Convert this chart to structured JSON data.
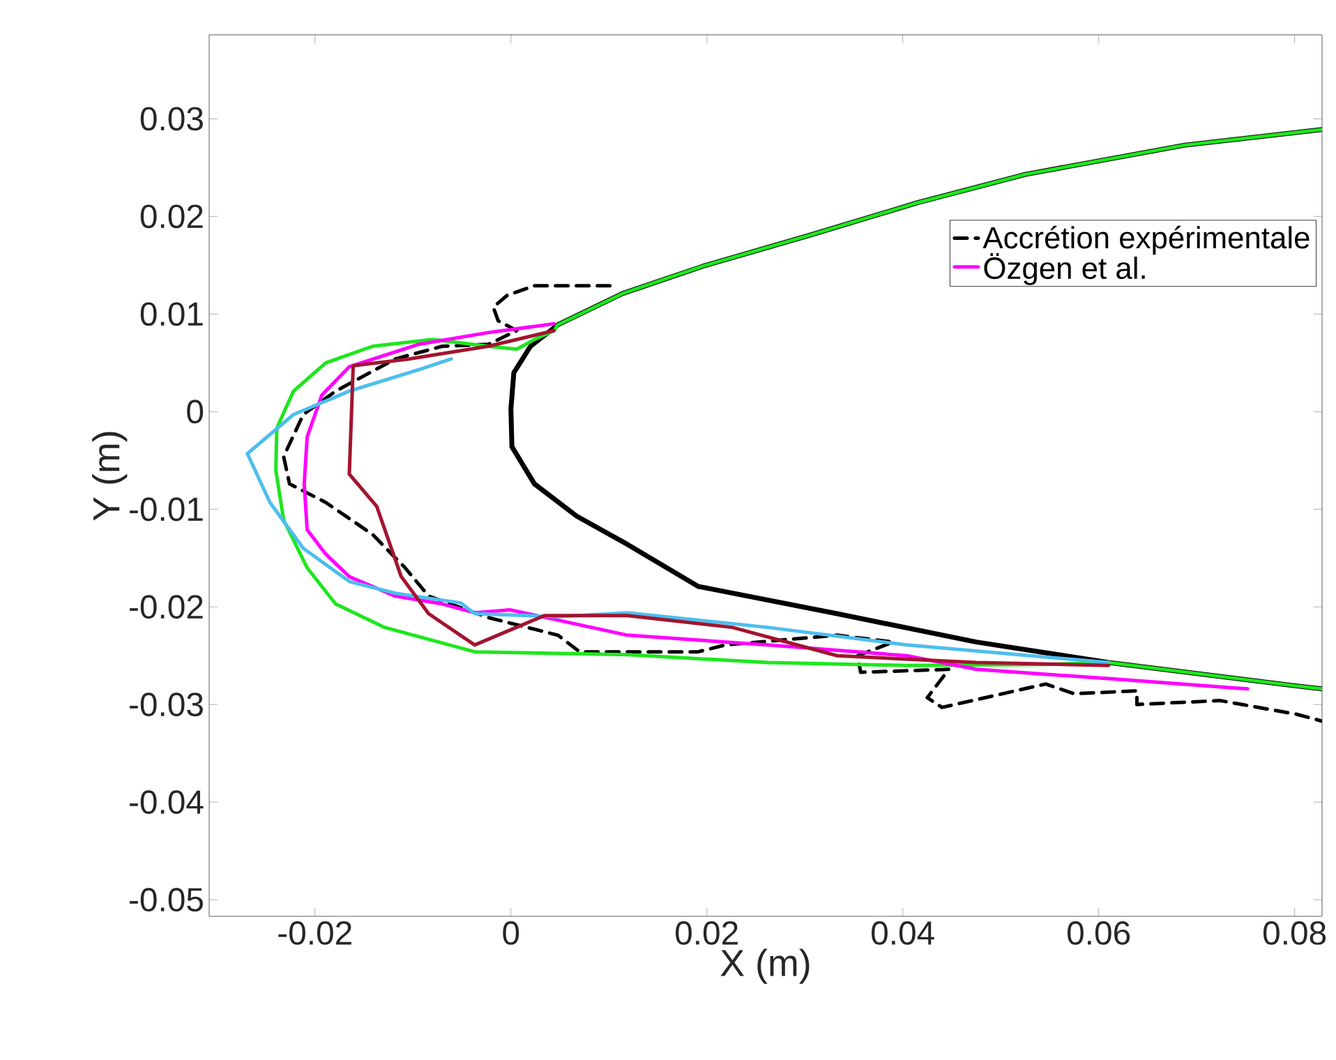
{
  "chart_data": {
    "type": "line",
    "xlabel": "X (m)",
    "ylabel": "Y (m)",
    "xlim": [
      -0.0308,
      0.0828
    ],
    "ylim": [
      -0.0517,
      0.0386
    ],
    "xticks": [
      -0.02,
      0,
      0.02,
      0.04,
      0.06,
      0.08
    ],
    "yticks": [
      -0.05,
      -0.04,
      -0.03,
      -0.02,
      -0.01,
      0,
      0.01,
      0.02,
      0.03
    ],
    "grid": false,
    "legend": "top right",
    "marker": "none",
    "series": [
      {
        "color": "#000000",
        "line_style": "solid",
        "x": [
          0.0828,
          0.0688,
          0.0525,
          0.0415,
          0.0306,
          0.0196,
          0.0114,
          0.0048,
          0.002,
          0.0003,
          0.0,
          0.0001,
          0.0024,
          0.0067,
          0.0119,
          0.0191,
          0.0333,
          0.0475,
          0.061,
          0.0802,
          0.0828
        ],
        "values": [
          0.0289,
          0.0273,
          0.0243,
          0.0214,
          0.0181,
          0.0149,
          0.0121,
          0.0089,
          0.0067,
          0.004,
          0.0003,
          -0.0036,
          -0.0074,
          -0.0107,
          -0.0136,
          -0.0179,
          -0.0207,
          -0.0236,
          -0.0257,
          -0.0281,
          -0.0284
        ]
      },
      {
        "name": "Accrétion expérimentale",
        "color": "#000000",
        "line_style": "dashed",
        "x": [
          0.0101,
          0.0024,
          -0.0004,
          -0.0018,
          -0.0013,
          0.0006,
          -0.0023,
          -0.007,
          -0.0118,
          -0.0179,
          -0.0212,
          -0.0232,
          -0.0226,
          -0.0189,
          -0.0141,
          -0.0108,
          -0.0084,
          -0.0023,
          0.0048,
          0.007,
          0.0191,
          0.0219,
          0.0333,
          0.039,
          0.0354,
          0.0357,
          0.0447,
          0.0425,
          0.044,
          0.0546,
          0.0575,
          0.0639,
          0.0639,
          0.0724,
          0.0802,
          0.0828
        ],
        "values": [
          0.0129,
          0.0129,
          0.0119,
          0.0107,
          0.0093,
          0.0083,
          0.0069,
          0.0067,
          0.0054,
          0.0021,
          -0.0003,
          -0.0046,
          -0.0074,
          -0.0093,
          -0.0126,
          -0.016,
          -0.0189,
          -0.0211,
          -0.0229,
          -0.0246,
          -0.0246,
          -0.0239,
          -0.0229,
          -0.0236,
          -0.025,
          -0.0267,
          -0.0264,
          -0.0293,
          -0.0303,
          -0.0279,
          -0.0289,
          -0.0286,
          -0.03,
          -0.0296,
          -0.031,
          -0.0317
        ]
      },
      {
        "color": "#1ee61e",
        "line_style": "solid",
        "x": [
          0.0828,
          0.0688,
          0.0525,
          0.0415,
          0.0306,
          0.0196,
          0.0114,
          0.0048,
          0.0044,
          0.0024,
          0.0006,
          -0.0023,
          -0.008,
          -0.0141,
          -0.0189,
          -0.0222,
          -0.0239,
          -0.024,
          -0.0232,
          -0.0208,
          -0.0179,
          -0.0129,
          -0.0037,
          0.0119,
          0.0262,
          0.0404,
          0.0546,
          0.061,
          0.0802,
          0.0828
        ],
        "values": [
          0.0289,
          0.0273,
          0.0243,
          0.0214,
          0.0181,
          0.0149,
          0.0121,
          0.0089,
          0.0083,
          0.0074,
          0.0064,
          0.0067,
          0.0074,
          0.0067,
          0.005,
          0.0021,
          -0.0017,
          -0.006,
          -0.0111,
          -0.016,
          -0.0197,
          -0.0221,
          -0.0246,
          -0.0249,
          -0.0257,
          -0.026,
          -0.0259,
          -0.0257,
          -0.0281,
          -0.0284
        ]
      },
      {
        "name": "Özgen et al.",
        "color": "#ff00ff",
        "line_style": "solid",
        "x": [
          0.0044,
          -0.0023,
          -0.0094,
          -0.0165,
          -0.0193,
          -0.0208,
          -0.0211,
          -0.0208,
          -0.0189,
          -0.0165,
          -0.0118,
          -0.007,
          -0.0037,
          -0.0001,
          0.0119,
          0.0262,
          0.0404,
          0.0475,
          0.0617,
          0.0752
        ],
        "values": [
          0.009,
          0.0081,
          0.0069,
          0.0046,
          0.0017,
          -0.0026,
          -0.0074,
          -0.0121,
          -0.0146,
          -0.0169,
          -0.0189,
          -0.0197,
          -0.0206,
          -0.0203,
          -0.0229,
          -0.0239,
          -0.025,
          -0.0264,
          -0.0274,
          -0.0284
        ]
      },
      {
        "color": "#4dbeee",
        "line_style": "solid",
        "x": [
          -0.0061,
          -0.0094,
          -0.0165,
          -0.0222,
          -0.0269,
          -0.0246,
          -0.0212,
          -0.0165,
          -0.0118,
          -0.0051,
          -0.0037,
          0.0048,
          0.0119,
          0.0262,
          0.0404,
          0.061
        ],
        "values": [
          0.0054,
          0.0043,
          0.0021,
          -0.0003,
          -0.0043,
          -0.0093,
          -0.014,
          -0.0174,
          -0.0186,
          -0.0196,
          -0.0207,
          -0.021,
          -0.0206,
          -0.0221,
          -0.0239,
          -0.0257
        ]
      },
      {
        "color": "#a2142f",
        "line_style": "solid",
        "x": [
          0.0044,
          -0.0023,
          -0.0104,
          -0.0161,
          -0.0165,
          -0.0137,
          -0.0112,
          -0.0084,
          -0.0037,
          0.0034,
          0.0119,
          0.0226,
          0.0333,
          0.0475,
          0.061
        ],
        "values": [
          0.0083,
          0.0067,
          0.0054,
          0.0047,
          -0.0064,
          -0.0097,
          -0.0169,
          -0.0207,
          -0.0239,
          -0.0209,
          -0.0209,
          -0.0221,
          -0.025,
          -0.0257,
          -0.026
        ]
      }
    ]
  }
}
